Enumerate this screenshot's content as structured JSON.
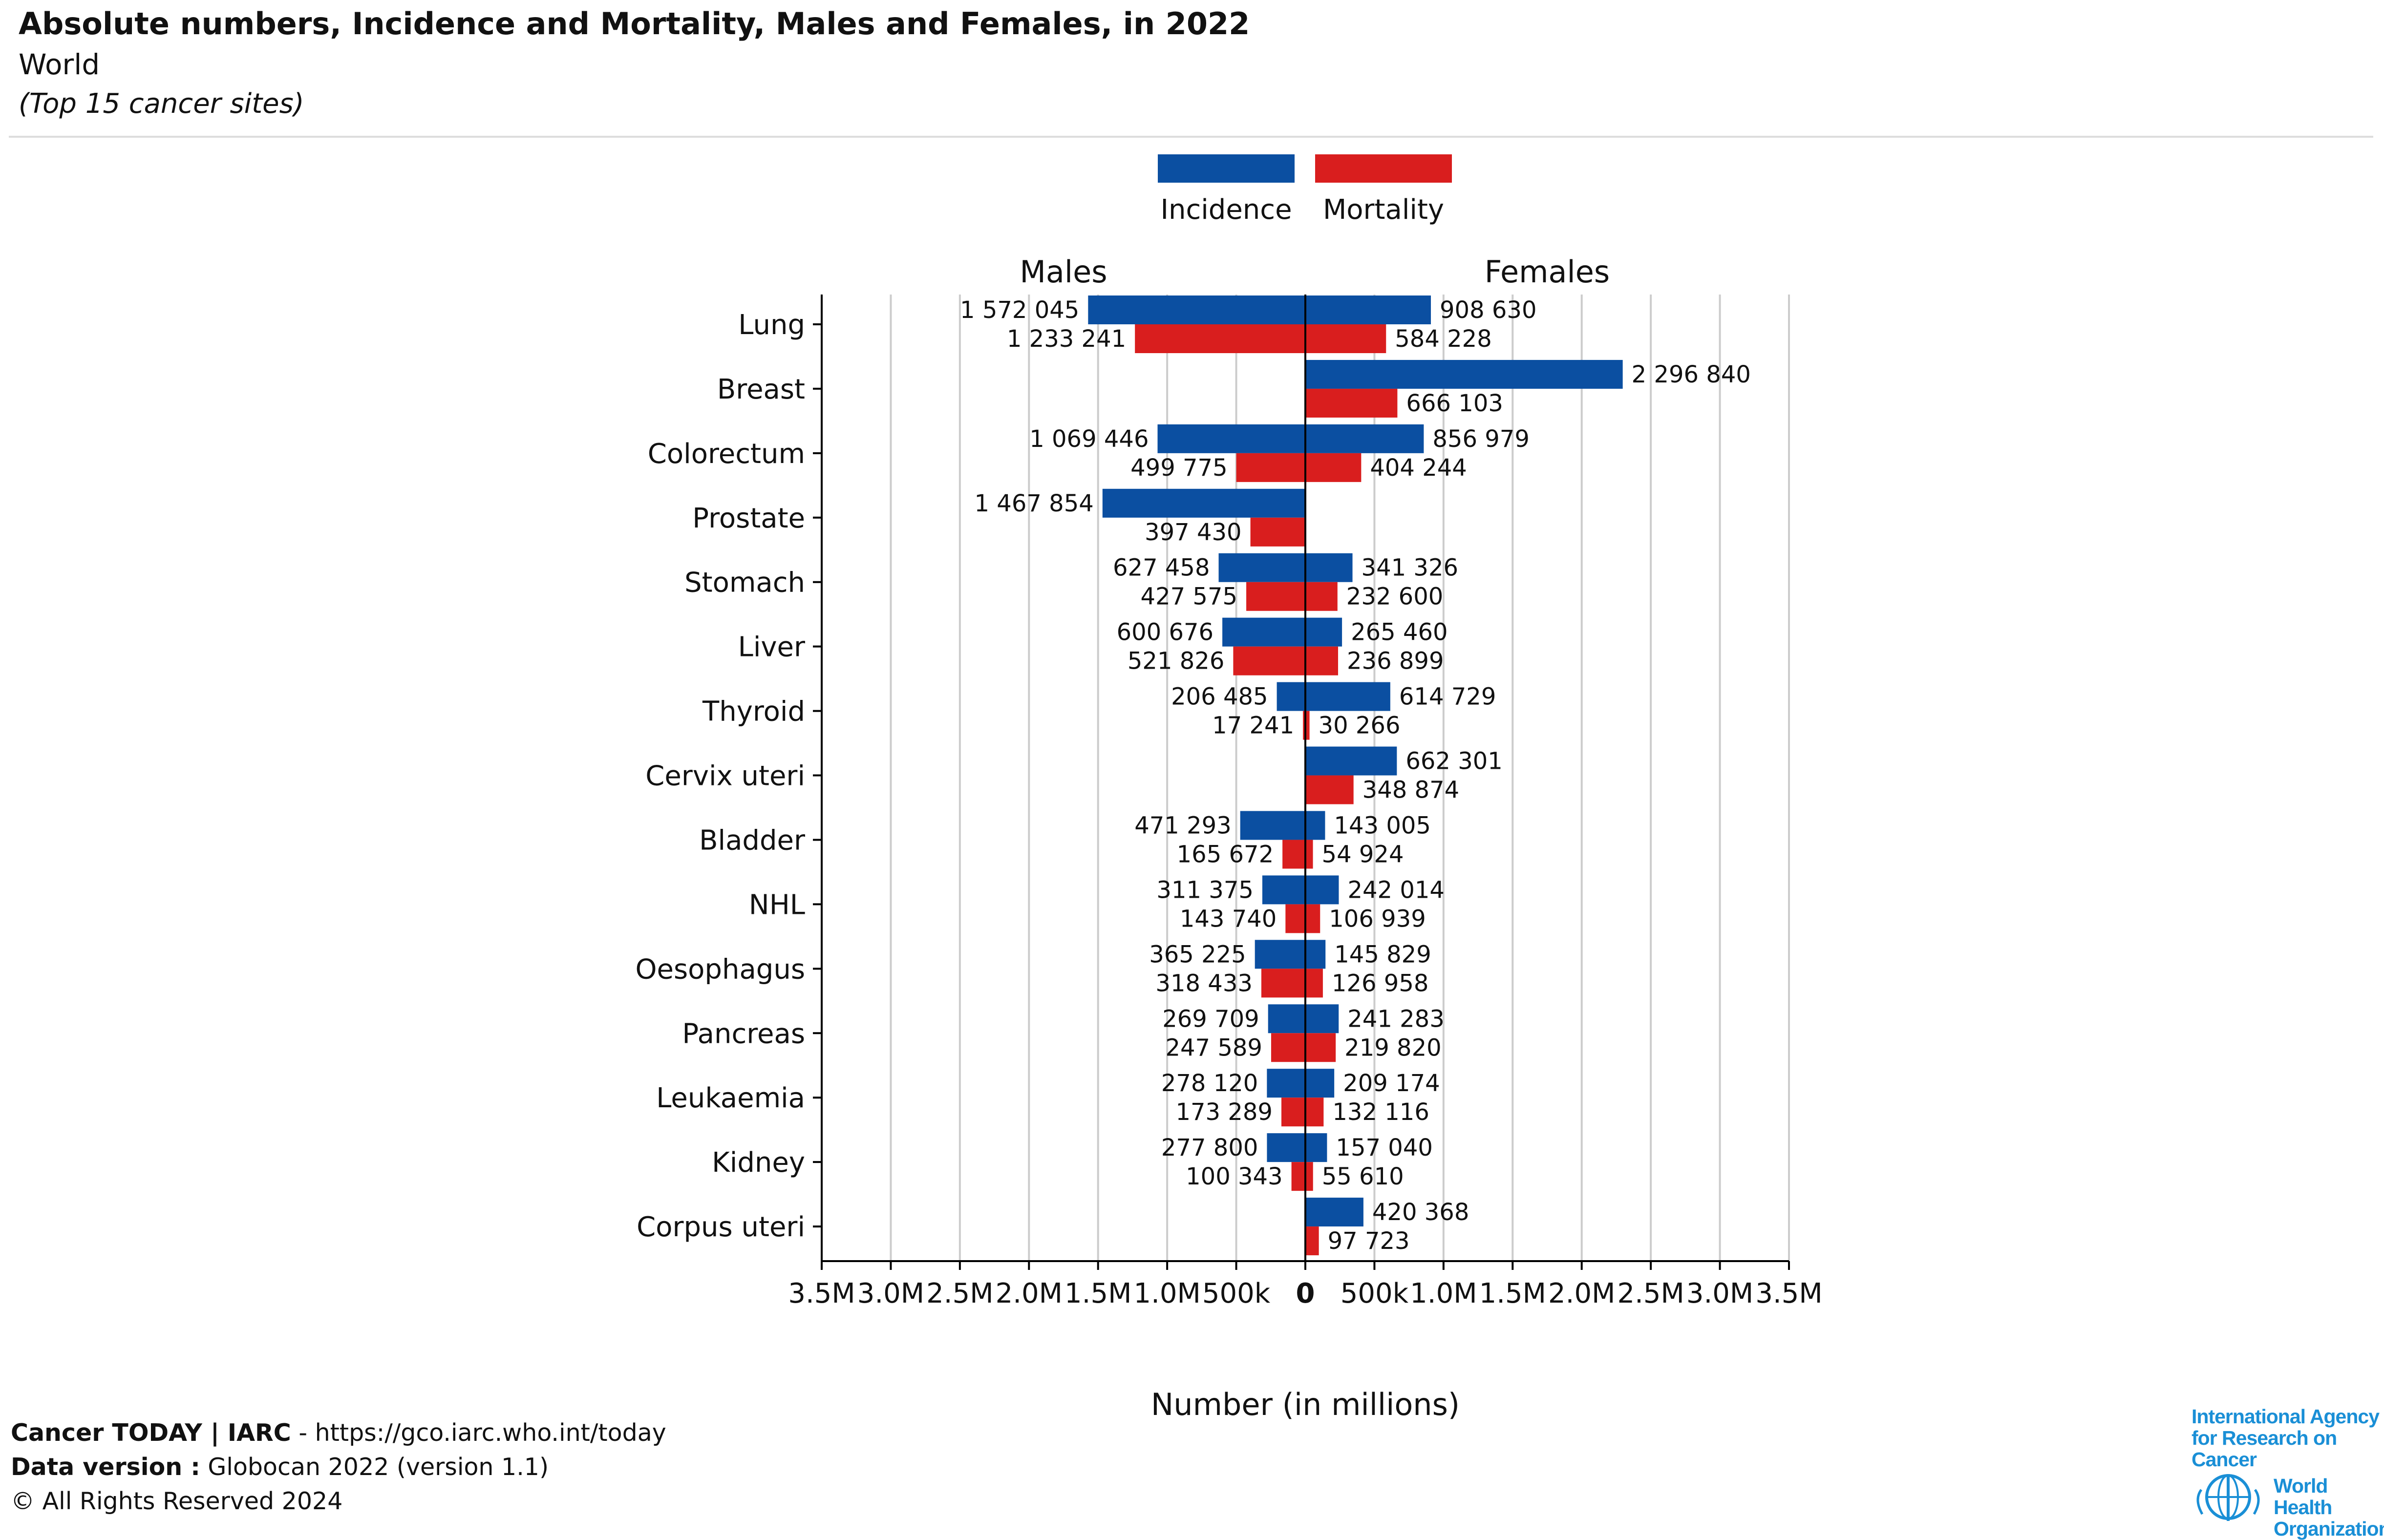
{
  "header": {
    "title": "Absolute numbers, Incidence and Mortality, Males and Females, in 2022",
    "subtitle": "World",
    "note": "(Top 15 cancer sites)"
  },
  "footer": {
    "line1_bold": "Cancer TODAY | IARC",
    "line1_rest": " - https://gco.iarc.who.int/today",
    "line2_bold": "Data version :",
    "line2_rest": " Globocan 2022 (version 1.1)",
    "line3": "© All Rights Reserved 2024"
  },
  "logos": {
    "iarc_line1": "International Agency",
    "iarc_line2": "for Research on Cancer",
    "who_line1": "World Health",
    "who_line2": "Organization",
    "who_emblem_icon": "who-emblem-icon"
  },
  "chart_data": {
    "type": "bar",
    "orientation": "horizontal-butterfly",
    "panels": [
      "Males",
      "Females"
    ],
    "xlabel": "Number (in millions)",
    "xlim": [
      -3500000,
      3500000
    ],
    "ticks": [
      "3.5M",
      "3.0M",
      "2.5M",
      "2.0M",
      "1.5M",
      "1.0M",
      "500k",
      "0",
      "500k",
      "1.0M",
      "1.5M",
      "2.0M",
      "2.5M",
      "3.0M",
      "3.5M"
    ],
    "grid": true,
    "legend_position": "top-center",
    "series": [
      {
        "name": "Incidence",
        "color": "#0b4fa1"
      },
      {
        "name": "Mortality",
        "color": "#d91e1e"
      }
    ],
    "categories": [
      {
        "site": "Lung",
        "male_inc": 1572045,
        "male_mort": 1233241,
        "female_inc": 908630,
        "female_mort": 584228,
        "labels": {
          "male_inc": "1 572 045",
          "male_mort": "1 233 241",
          "female_inc": "908 630",
          "female_mort": "584 228"
        }
      },
      {
        "site": "Breast",
        "male_inc": 0,
        "male_mort": 0,
        "female_inc": 2296840,
        "female_mort": 666103,
        "labels": {
          "male_inc": "",
          "male_mort": "",
          "female_inc": "2 296 840",
          "female_mort": "666 103"
        }
      },
      {
        "site": "Colorectum",
        "male_inc": 1069446,
        "male_mort": 499775,
        "female_inc": 856979,
        "female_mort": 404244,
        "labels": {
          "male_inc": "1 069 446",
          "male_mort": "499 775",
          "female_inc": "856 979",
          "female_mort": "404 244"
        }
      },
      {
        "site": "Prostate",
        "male_inc": 1467854,
        "male_mort": 397430,
        "female_inc": 0,
        "female_mort": 0,
        "labels": {
          "male_inc": "1 467 854",
          "male_mort": "397 430",
          "female_inc": "",
          "female_mort": ""
        }
      },
      {
        "site": "Stomach",
        "male_inc": 627458,
        "male_mort": 427575,
        "female_inc": 341326,
        "female_mort": 232600,
        "labels": {
          "male_inc": "627 458",
          "male_mort": "427 575",
          "female_inc": "341 326",
          "female_mort": "232 600"
        }
      },
      {
        "site": "Liver",
        "male_inc": 600676,
        "male_mort": 521826,
        "female_inc": 265460,
        "female_mort": 236899,
        "labels": {
          "male_inc": "600 676",
          "male_mort": "521 826",
          "female_inc": "265 460",
          "female_mort": "236 899"
        }
      },
      {
        "site": "Thyroid",
        "male_inc": 206485,
        "male_mort": 17241,
        "female_inc": 614729,
        "female_mort": 30266,
        "labels": {
          "male_inc": "206 485",
          "male_mort": "17 241",
          "female_inc": "614 729",
          "female_mort": "30 266"
        }
      },
      {
        "site": "Cervix uteri",
        "male_inc": 0,
        "male_mort": 0,
        "female_inc": 662301,
        "female_mort": 348874,
        "labels": {
          "male_inc": "",
          "male_mort": "",
          "female_inc": "662 301",
          "female_mort": "348 874"
        }
      },
      {
        "site": "Bladder",
        "male_inc": 471293,
        "male_mort": 165672,
        "female_inc": 143005,
        "female_mort": 54924,
        "labels": {
          "male_inc": "471 293",
          "male_mort": "165 672",
          "female_inc": "143 005",
          "female_mort": "54 924"
        }
      },
      {
        "site": "NHL",
        "male_inc": 311375,
        "male_mort": 143740,
        "female_inc": 242014,
        "female_mort": 106939,
        "labels": {
          "male_inc": "311 375",
          "male_mort": "143 740",
          "female_inc": "242 014",
          "female_mort": "106 939"
        }
      },
      {
        "site": "Oesophagus",
        "male_inc": 365225,
        "male_mort": 318433,
        "female_inc": 145829,
        "female_mort": 126958,
        "labels": {
          "male_inc": "365 225",
          "male_mort": "318 433",
          "female_inc": "145 829",
          "female_mort": "126 958"
        }
      },
      {
        "site": "Pancreas",
        "male_inc": 269709,
        "male_mort": 247589,
        "female_inc": 241283,
        "female_mort": 219820,
        "labels": {
          "male_inc": "269 709",
          "male_mort": "247 589",
          "female_inc": "241 283",
          "female_mort": "219 820"
        }
      },
      {
        "site": "Leukaemia",
        "male_inc": 278120,
        "male_mort": 173289,
        "female_inc": 209174,
        "female_mort": 132116,
        "labels": {
          "male_inc": "278 120",
          "male_mort": "173 289",
          "female_inc": "209 174",
          "female_mort": "132 116"
        }
      },
      {
        "site": "Kidney",
        "male_inc": 277800,
        "male_mort": 100343,
        "female_inc": 157040,
        "female_mort": 55610,
        "labels": {
          "male_inc": "277 800",
          "male_mort": "100 343",
          "female_inc": "157 040",
          "female_mort": "55 610"
        }
      },
      {
        "site": "Corpus uteri",
        "male_inc": 0,
        "male_mort": 0,
        "female_inc": 420368,
        "female_mort": 97723,
        "labels": {
          "male_inc": "",
          "male_mort": "",
          "female_inc": "420 368",
          "female_mort": "97 723"
        }
      }
    ]
  }
}
